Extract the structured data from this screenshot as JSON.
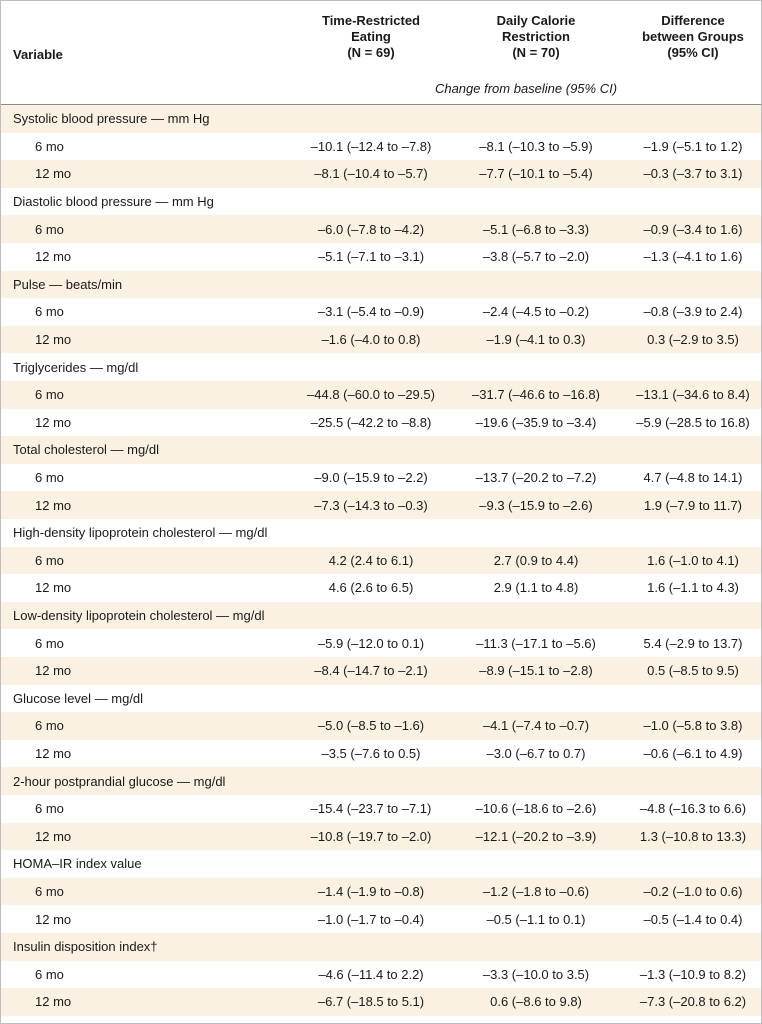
{
  "header": {
    "columns": [
      {
        "lines": [
          "Variable"
        ]
      },
      {
        "lines": [
          "Time-Restricted",
          "Eating",
          "(N = 69)"
        ]
      },
      {
        "lines": [
          "Daily Calorie",
          "Restriction",
          "(N = 70)"
        ]
      },
      {
        "lines": [
          "Difference",
          "between Groups",
          "(95% CI)"
        ]
      }
    ],
    "subheader": "Change from baseline (95% CI)"
  },
  "groups": [
    {
      "label": "Systolic blood pressure — mm Hg",
      "rows": [
        {
          "label": "6 mo",
          "values": [
            "–10.1 (–12.4 to –7.8)",
            "–8.1 (–10.3 to –5.9)",
            "–1.9 (–5.1 to 1.2)"
          ]
        },
        {
          "label": "12 mo",
          "values": [
            "–8.1 (–10.4 to –5.7)",
            "–7.7 (–10.1 to –5.4)",
            "–0.3 (–3.7 to 3.1)"
          ]
        }
      ]
    },
    {
      "label": "Diastolic blood pressure — mm Hg",
      "rows": [
        {
          "label": "6 mo",
          "values": [
            "–6.0 (–7.8 to –4.2)",
            "–5.1 (–6.8 to –3.3)",
            "–0.9 (–3.4 to 1.6)"
          ]
        },
        {
          "label": "12 mo",
          "values": [
            "–5.1 (–7.1 to –3.1)",
            "–3.8 (–5.7 to –2.0)",
            "–1.3 (–4.1 to 1.6)"
          ]
        }
      ]
    },
    {
      "label": "Pulse — beats/min",
      "rows": [
        {
          "label": "6 mo",
          "values": [
            "–3.1 (–5.4 to –0.9)",
            "–2.4 (–4.5 to –0.2)",
            "–0.8 (–3.9 to 2.4)"
          ]
        },
        {
          "label": "12 mo",
          "values": [
            "–1.6 (–4.0 to 0.8)",
            "–1.9 (–4.1 to 0.3)",
            "0.3 (–2.9 to 3.5)"
          ]
        }
      ]
    },
    {
      "label": "Triglycerides — mg/dl",
      "rows": [
        {
          "label": "6 mo",
          "values": [
            "–44.8 (–60.0 to –29.5)",
            "–31.7 (–46.6 to –16.8)",
            "–13.1 (–34.6 to 8.4)"
          ]
        },
        {
          "label": "12 mo",
          "values": [
            "–25.5 (–42.2 to –8.8)",
            "–19.6 (–35.9 to –3.4)",
            "–5.9 (–28.5 to 16.8)"
          ]
        }
      ]
    },
    {
      "label": "Total cholesterol — mg/dl",
      "rows": [
        {
          "label": "6 mo",
          "values": [
            "–9.0 (–15.9 to –2.2)",
            "–13.7 (–20.2 to –7.2)",
            "4.7 (–4.8 to 14.1)"
          ]
        },
        {
          "label": "12 mo",
          "values": [
            "–7.3 (–14.3 to –0.3)",
            "–9.3 (–15.9 to –2.6)",
            "1.9 (–7.9 to 11.7)"
          ]
        }
      ]
    },
    {
      "label": "High-density lipoprotein cholesterol — mg/dl",
      "rows": [
        {
          "label": "6 mo",
          "values": [
            "4.2 (2.4 to 6.1)",
            "2.7 (0.9 to 4.4)",
            "1.6 (–1.0 to 4.1)"
          ]
        },
        {
          "label": "12 mo",
          "values": [
            "4.6 (2.6 to 6.5)",
            "2.9 (1.1 to 4.8)",
            "1.6 (–1.1 to 4.3)"
          ]
        }
      ]
    },
    {
      "label": "Low-density lipoprotein cholesterol — mg/dl",
      "rows": [
        {
          "label": "6 mo",
          "values": [
            "–5.9 (–12.0 to 0.1)",
            "–11.3 (–17.1 to –5.6)",
            "5.4 (–2.9 to 13.7)"
          ]
        },
        {
          "label": "12 mo",
          "values": [
            "–8.4 (–14.7 to –2.1)",
            "–8.9 (–15.1 to –2.8)",
            "0.5 (–8.5 to 9.5)"
          ]
        }
      ]
    },
    {
      "label": "Glucose level — mg/dl",
      "rows": [
        {
          "label": "6 mo",
          "values": [
            "–5.0 (–8.5 to –1.6)",
            "–4.1 (–7.4 to –0.7)",
            "–1.0 (–5.8 to 3.8)"
          ]
        },
        {
          "label": "12 mo",
          "values": [
            "–3.5 (–7.6 to 0.5)",
            "–3.0 (–6.7 to 0.7)",
            "–0.6 (–6.1 to 4.9)"
          ]
        }
      ]
    },
    {
      "label": "2-hour postprandial glucose — mg/dl",
      "rows": [
        {
          "label": "6 mo",
          "values": [
            "–15.4 (–23.7 to –7.1)",
            "–10.6 (–18.6 to –2.6)",
            "–4.8 (–16.3 to 6.6)"
          ]
        },
        {
          "label": "12 mo",
          "values": [
            "–10.8 (–19.7 to –2.0)",
            "–12.1 (–20.2 to –3.9)",
            "1.3 (–10.8 to 13.3)"
          ]
        }
      ]
    },
    {
      "label": "HOMA–IR index value",
      "rows": [
        {
          "label": "6 mo",
          "values": [
            "–1.4 (–1.9 to –0.8)",
            "–1.2 (–1.8 to –0.6)",
            "–0.2 (–1.0 to 0.6)"
          ]
        },
        {
          "label": "12 mo",
          "values": [
            "–1.0 (–1.7 to –0.4)",
            "–0.5 (–1.1 to 0.1)",
            "–0.5 (–1.4 to 0.4)"
          ]
        }
      ]
    },
    {
      "label": "Insulin disposition index†",
      "rows": [
        {
          "label": "6 mo",
          "values": [
            "–4.6 (–11.4 to 2.2)",
            "–3.3 (–10.0 to 3.5)",
            "–1.3 (–10.9 to 8.2)"
          ]
        },
        {
          "label": "12 mo",
          "values": [
            "–6.7 (–18.5 to 5.1)",
            "0.6 (–8.6 to 9.8)",
            "–7.3 (–20.8 to 6.2)"
          ]
        }
      ]
    }
  ]
}
